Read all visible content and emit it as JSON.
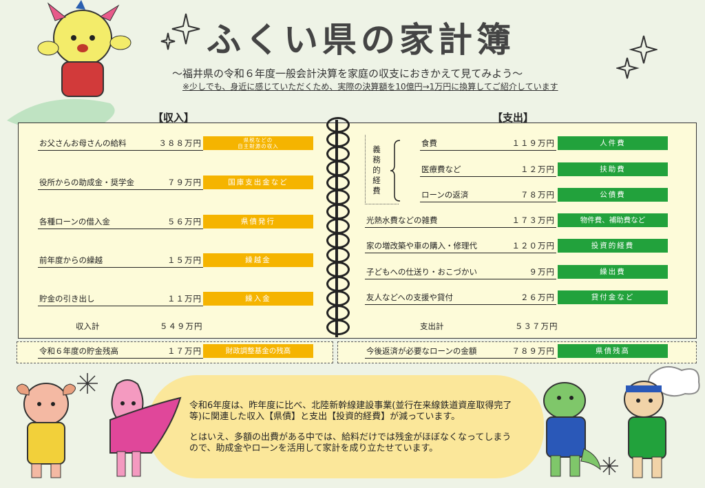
{
  "header": {
    "title": "ふくい県の家計簿",
    "subtitle": "〜福井県の令和６年度一般会計決算を家庭の収支におきかえて見てみよう〜",
    "note": "※少しでも、身近に感じていただくため、実際の決算額を10億円→1万円に換算してご紹介しています"
  },
  "income": {
    "heading": "【収入】",
    "rows": [
      {
        "label": "お父さんお母さんの給料",
        "amount": "３８８万円",
        "tag1": "県税などの",
        "tag2": "自主財源の収入"
      },
      {
        "label": "役所からの助成金・奨学金",
        "amount": "７９万円",
        "tag": "国庫支出金など"
      },
      {
        "label": "各種ローンの借入金",
        "amount": "５６万円",
        "tag": "県債発行"
      },
      {
        "label": "前年度からの繰越",
        "amount": "１５万円",
        "tag": "繰越金"
      },
      {
        "label": "貯金の引き出し",
        "amount": "１１万円",
        "tag": "繰入金"
      }
    ],
    "total_label": "収入計",
    "total_amount": "５４９万円",
    "balance": {
      "label": "令和６年度の貯金残高",
      "amount": "１７万円",
      "tag": "財政調整基金の残高"
    }
  },
  "expense": {
    "heading": "【支出】",
    "group_label": "義務的経費",
    "rows": [
      {
        "label": "食費",
        "amount": "１１９万円",
        "tag": "人件費"
      },
      {
        "label": "医療費など",
        "amount": "１２万円",
        "tag": "扶助費"
      },
      {
        "label": "ローンの返済",
        "amount": "７８万円",
        "tag": "公債費"
      },
      {
        "label": "光熱水費などの雑費",
        "amount": "１７３万円",
        "tag": "物件費、補助費など"
      },
      {
        "label": "家の増改築や車の購入・修理代",
        "amount": "１２０万円",
        "tag": "投資的経費"
      },
      {
        "label": "子どもへの仕送り・おこづかい",
        "amount": "９万円",
        "tag": "繰出費"
      },
      {
        "label": "友人などへの支援や貸付",
        "amount": "２６万円",
        "tag": "貸付金など"
      }
    ],
    "total_label": "支出計",
    "total_amount": "５３７万円",
    "balance": {
      "label": "今後返済が必要なローンの金額",
      "amount": "７８９万円",
      "tag": "県債残高"
    }
  },
  "message": {
    "para1": "令和6年度は、昨年度に比べ、北陸新幹線建設事業(並行在来線鉄道資産取得完了等)に関連した収入【県債】と支出【投資的経費】が減っています。",
    "para2": "とはいえ、多額の出費がある中では、給料だけでは残金がほぼなくなってしまうので、助成金やローンを活用して家計を成り立たせています。"
  },
  "colors": {
    "income_tag": "#f5b400",
    "expense_tag": "#22a23c",
    "book_bg": "#fdfbd9",
    "message_bg": "#fbe79a",
    "page_bg": "#eef3e6"
  },
  "icons": [
    "mascot-red-dragon",
    "mascot-yellow",
    "mascot-pink",
    "mascot-green-dinosaur",
    "mascot-green-runner",
    "sparkle-icon"
  ]
}
